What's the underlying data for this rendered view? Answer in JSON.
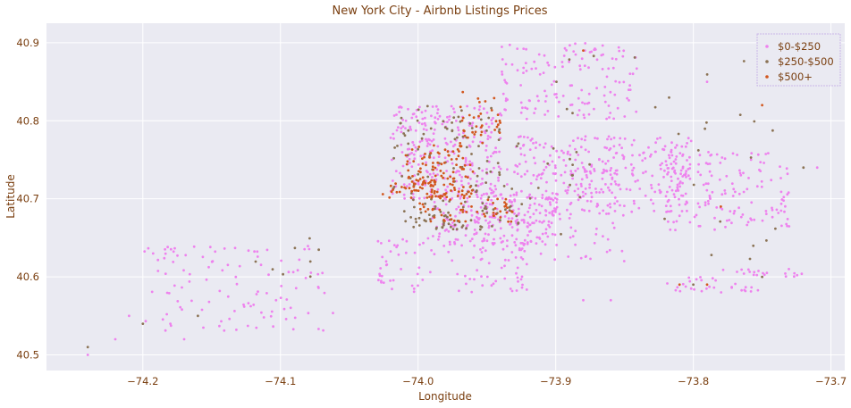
{
  "chart_data": {
    "type": "scatter",
    "title": "New York City - Airbnb Listings Prices",
    "xlabel": "Longitude",
    "ylabel": "Latitude",
    "xlim": [
      -74.27,
      -73.69
    ],
    "ylim": [
      40.48,
      40.925
    ],
    "xticks": [
      -74.2,
      -74.1,
      -74.0,
      -73.9,
      -73.8,
      -73.7
    ],
    "xtick_labels": [
      "−74.2",
      "−74.1",
      "−74.0",
      "−73.9",
      "−73.8",
      "−73.7"
    ],
    "yticks": [
      40.5,
      40.6,
      40.7,
      40.8,
      40.9
    ],
    "ytick_labels": [
      "40.5",
      "40.6",
      "40.7",
      "40.8",
      "40.9"
    ],
    "grid": true,
    "background": "#eaeaf2",
    "legend_position": "top-right",
    "series": [
      {
        "name": "$0-$250",
        "color": "#ee82ee",
        "regions": [
          {
            "lon": [
              -74.02,
              -73.94
            ],
            "lat": [
              40.7,
              40.82
            ],
            "n": 260
          },
          {
            "lon": [
              -73.99,
              -73.9
            ],
            "lat": [
              40.64,
              40.71
            ],
            "n": 200
          },
          {
            "lon": [
              -73.96,
              -73.85
            ],
            "lat": [
              40.62,
              40.74
            ],
            "n": 150
          },
          {
            "lon": [
              -73.93,
              -73.8
            ],
            "lat": [
              40.73,
              40.78
            ],
            "n": 160
          },
          {
            "lon": [
              -73.94,
              -73.84
            ],
            "lat": [
              40.8,
              40.9
            ],
            "n": 140
          },
          {
            "lon": [
              -73.82,
              -73.73
            ],
            "lat": [
              40.66,
              40.76
            ],
            "n": 150
          },
          {
            "lon": [
              -73.9,
              -73.8
            ],
            "lat": [
              40.68,
              40.74
            ],
            "n": 110
          },
          {
            "lon": [
              -74.03,
              -73.92
            ],
            "lat": [
              40.58,
              40.65
            ],
            "n": 90
          },
          {
            "lon": [
              -74.2,
              -74.06
            ],
            "lat": [
              40.53,
              40.64
            ],
            "n": 110
          },
          {
            "lon": [
              -73.82,
              -73.75
            ],
            "lat": [
              40.58,
              40.6
            ],
            "n": 30
          },
          {
            "lon": [
              -73.78,
              -73.72
            ],
            "lat": [
              40.6,
              40.61
            ],
            "n": 20
          }
        ],
        "points": [
          [
            -74.24,
            40.5
          ],
          [
            -74.22,
            40.52
          ],
          [
            -74.21,
            40.55
          ],
          [
            -74.18,
            40.54
          ],
          [
            -74.17,
            40.52
          ],
          [
            -73.71,
            40.74
          ],
          [
            -73.79,
            40.85
          ],
          [
            -73.86,
            40.57
          ],
          [
            -73.88,
            40.57
          ]
        ]
      },
      {
        "name": "$250-$500",
        "color": "#8b7355",
        "regions": [
          {
            "lon": [
              -74.02,
              -73.94
            ],
            "lat": [
              40.7,
              40.82
            ],
            "n": 70
          },
          {
            "lon": [
              -74.01,
              -73.92
            ],
            "lat": [
              40.66,
              40.7
            ],
            "n": 70
          },
          {
            "lon": [
              -73.96,
              -73.88
            ],
            "lat": [
              40.7,
              40.78
            ],
            "n": 20
          },
          {
            "lon": [
              -73.9,
              -73.73
            ],
            "lat": [
              40.62,
              40.9
            ],
            "n": 30
          },
          {
            "lon": [
              -74.12,
              -74.06
            ],
            "lat": [
              40.59,
              40.65
            ],
            "n": 8
          }
        ],
        "points": [
          [
            -74.24,
            40.51
          ],
          [
            -74.2,
            40.54
          ],
          [
            -74.16,
            40.55
          ],
          [
            -73.72,
            40.74
          ],
          [
            -73.75,
            40.6
          ],
          [
            -73.8,
            40.59
          ]
        ]
      },
      {
        "name": "$500+",
        "color": "#d2571e",
        "regions": [
          {
            "lon": [
              -74.01,
              -73.96
            ],
            "lat": [
              40.7,
              40.77
            ],
            "n": 120
          },
          {
            "lon": [
              -74.0,
              -73.93
            ],
            "lat": [
              40.67,
              40.7
            ],
            "n": 50
          },
          {
            "lon": [
              -73.97,
              -73.94
            ],
            "lat": [
              40.77,
              40.84
            ],
            "n": 35
          },
          {
            "lon": [
              -74.03,
              -73.96
            ],
            "lat": [
              40.7,
              40.72
            ],
            "n": 25
          }
        ],
        "points": [
          [
            -73.88,
            40.89
          ],
          [
            -73.79,
            40.59
          ],
          [
            -73.81,
            40.59
          ],
          [
            -73.75,
            40.82
          ],
          [
            -73.78,
            40.69
          ]
        ]
      }
    ]
  }
}
